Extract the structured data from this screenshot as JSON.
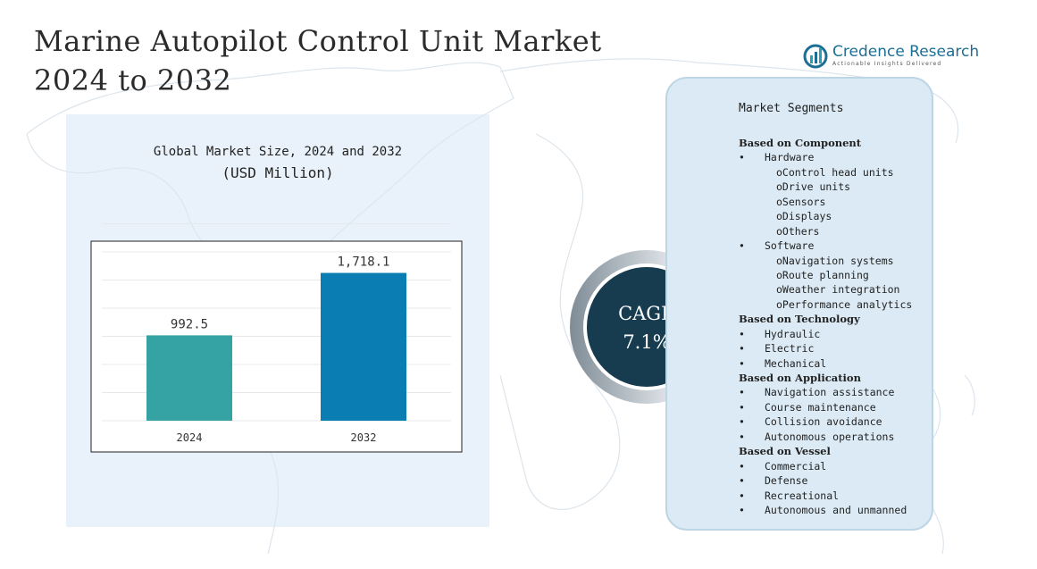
{
  "header": {
    "title_line1": "Marine Autopilot Control Unit Market",
    "title_line2": "2024 to 2032"
  },
  "logo": {
    "name": "Credence Research",
    "tagline": "Actionable Insights Delivered",
    "icon": "credence-logo-icon"
  },
  "chart": {
    "title": "Global Market Size, 2024 and 2032",
    "subtitle": "(USD Million)"
  },
  "chart_data": {
    "type": "bar",
    "title": "Global Market Size, 2024 and 2032",
    "subtitle": "(USD Million)",
    "categories": [
      "2024",
      "2032"
    ],
    "values": [
      992.5,
      1718.1
    ],
    "value_labels": [
      "992.5",
      "1,718.1"
    ],
    "bar_colors": [
      "#35a3a3",
      "#0a7db3"
    ],
    "ylim": [
      0,
      1900
    ],
    "grid": true,
    "legend": "none"
  },
  "cagr": {
    "label": "CAGR",
    "value": "7.1%"
  },
  "segments": {
    "heading": "Market Segments",
    "rows": [
      {
        "kind": "group",
        "text": "Based on Component"
      },
      {
        "kind": "item",
        "text": "Hardware"
      },
      {
        "kind": "sub",
        "text": "oControl head units"
      },
      {
        "kind": "sub",
        "text": "oDrive units"
      },
      {
        "kind": "sub",
        "text": "oSensors"
      },
      {
        "kind": "sub",
        "text": "oDisplays"
      },
      {
        "kind": "sub",
        "text": "oOthers"
      },
      {
        "kind": "item",
        "text": "Software"
      },
      {
        "kind": "sub",
        "text": "oNavigation systems"
      },
      {
        "kind": "sub",
        "text": "oRoute planning"
      },
      {
        "kind": "sub",
        "text": "oWeather integration"
      },
      {
        "kind": "sub",
        "text": "oPerformance analytics"
      },
      {
        "kind": "group",
        "text": "Based on Technology"
      },
      {
        "kind": "item",
        "text": "Hydraulic"
      },
      {
        "kind": "item",
        "text": "Electric"
      },
      {
        "kind": "item",
        "text": "Mechanical"
      },
      {
        "kind": "group",
        "text": "Based on Application"
      },
      {
        "kind": "item",
        "text": "Navigation assistance"
      },
      {
        "kind": "item",
        "text": "Course maintenance"
      },
      {
        "kind": "item",
        "text": "Collision avoidance"
      },
      {
        "kind": "item",
        "text": "Autonomous operations"
      },
      {
        "kind": "group",
        "text": "Based on Vessel"
      },
      {
        "kind": "item",
        "text": "Commercial"
      },
      {
        "kind": "item",
        "text": "Defense"
      },
      {
        "kind": "item",
        "text": "Recreational"
      },
      {
        "kind": "item",
        "text": "Autonomous and unmanned"
      }
    ]
  }
}
